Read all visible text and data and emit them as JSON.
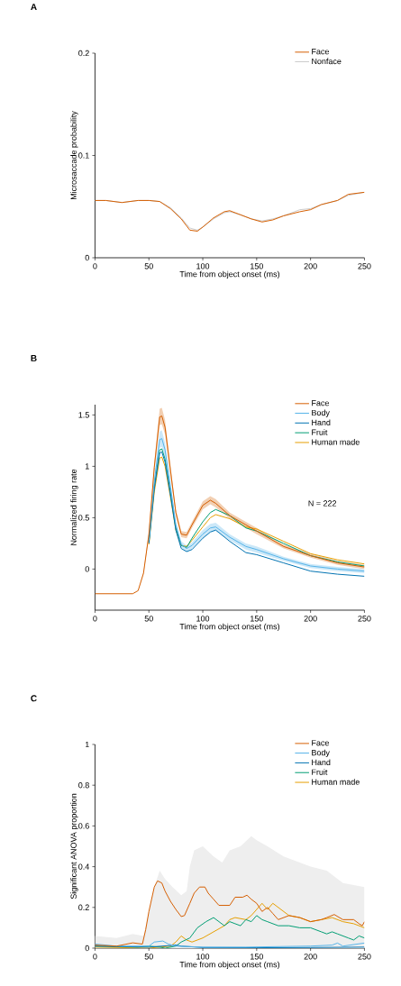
{
  "chart_data": [
    {
      "type": "line",
      "title": "A",
      "xlabel": "Time from object onset (ms)",
      "ylabel": "Microsaccade probability",
      "xlim": [
        0,
        250
      ],
      "ylim": [
        0,
        0.2
      ],
      "xticks": [
        0,
        50,
        100,
        150,
        200,
        250
      ],
      "yticks": [
        0,
        0.1,
        0.2
      ],
      "legend": "top right",
      "x": [
        0,
        10,
        25,
        40,
        50,
        60,
        70,
        80,
        88,
        95,
        100,
        110,
        120,
        125,
        135,
        145,
        155,
        165,
        175,
        190,
        200,
        210,
        225,
        235,
        250
      ],
      "series": [
        {
          "name": "Face",
          "color": "#d55e00",
          "values": [
            0.056,
            0.056,
            0.054,
            0.056,
            0.056,
            0.055,
            0.048,
            0.038,
            0.027,
            0.026,
            0.03,
            0.039,
            0.045,
            0.046,
            0.042,
            0.038,
            0.035,
            0.037,
            0.041,
            0.045,
            0.047,
            0.052,
            0.056,
            0.062,
            0.064
          ]
        },
        {
          "name": "Nonface",
          "color": "#cccccc",
          "values": [
            0.056,
            0.056,
            0.054,
            0.056,
            0.056,
            0.055,
            0.049,
            0.039,
            0.029,
            0.027,
            0.03,
            0.038,
            0.044,
            0.045,
            0.042,
            0.038,
            0.036,
            0.038,
            0.041,
            0.047,
            0.048,
            0.052,
            0.056,
            0.061,
            0.064
          ]
        }
      ]
    },
    {
      "type": "line",
      "title": "B",
      "xlabel": "Time from object onset (ms)",
      "ylabel": "Normalized firing rate",
      "xlim": [
        0,
        250
      ],
      "ylim": [
        -0.4,
        1.6
      ],
      "xticks": [
        0,
        50,
        100,
        150,
        200,
        250
      ],
      "yticks": [
        0,
        0.5,
        1,
        1.5
      ],
      "legend": "top right",
      "annotations": [
        "N = 222"
      ],
      "x": [
        0,
        35,
        40,
        45,
        50,
        55,
        60,
        62,
        65,
        70,
        75,
        80,
        85,
        90,
        100,
        107,
        112,
        125,
        140,
        150,
        175,
        200,
        225,
        250
      ],
      "series": [
        {
          "name": "Face",
          "color": "#d55e00",
          "values": [
            -0.24,
            -0.24,
            -0.21,
            -0.04,
            0.34,
            0.99,
            1.48,
            1.49,
            1.38,
            0.96,
            0.55,
            0.34,
            0.33,
            0.43,
            0.62,
            0.67,
            0.64,
            0.52,
            0.43,
            0.37,
            0.22,
            0.13,
            0.06,
            0.02
          ],
          "lower": [
            -0.24,
            -0.24,
            -0.21,
            -0.05,
            0.31,
            0.94,
            1.4,
            1.41,
            1.31,
            0.91,
            0.52,
            0.31,
            0.3,
            0.4,
            0.58,
            0.63,
            0.6,
            0.49,
            0.4,
            0.34,
            0.2,
            0.11,
            0.04,
            0.0
          ],
          "upper": [
            -0.24,
            -0.24,
            -0.21,
            -0.03,
            0.37,
            1.04,
            1.56,
            1.57,
            1.45,
            1.01,
            0.58,
            0.37,
            0.36,
            0.46,
            0.66,
            0.71,
            0.68,
            0.55,
            0.46,
            0.4,
            0.24,
            0.15,
            0.08,
            0.04
          ]
        },
        {
          "name": "Body",
          "color": "#56b4e9",
          "values": [
            null,
            null,
            null,
            null,
            0.28,
            0.85,
            1.26,
            1.27,
            1.16,
            0.8,
            0.43,
            0.24,
            0.2,
            0.23,
            0.34,
            0.4,
            0.41,
            0.31,
            0.22,
            0.19,
            0.1,
            0.03,
            0.0,
            -0.02
          ],
          "lower": [
            null,
            null,
            null,
            null,
            0.25,
            0.8,
            1.18,
            1.19,
            1.09,
            0.75,
            0.4,
            0.21,
            0.17,
            0.2,
            0.3,
            0.36,
            0.37,
            0.28,
            0.19,
            0.16,
            0.08,
            0.01,
            -0.02,
            -0.04
          ],
          "upper": [
            null,
            null,
            null,
            null,
            0.31,
            0.9,
            1.34,
            1.35,
            1.23,
            0.85,
            0.46,
            0.27,
            0.23,
            0.26,
            0.38,
            0.44,
            0.45,
            0.34,
            0.25,
            0.22,
            0.12,
            0.05,
            0.02,
            0.0
          ]
        },
        {
          "name": "Hand",
          "color": "#0072b2",
          "values": [
            null,
            null,
            null,
            null,
            0.25,
            0.78,
            1.13,
            1.14,
            1.04,
            0.72,
            0.38,
            0.2,
            0.17,
            0.19,
            0.3,
            0.36,
            0.38,
            0.27,
            0.16,
            0.14,
            0.06,
            -0.02,
            -0.05,
            -0.07
          ]
        },
        {
          "name": "Fruit",
          "color": "#009e73",
          "values": [
            null,
            null,
            null,
            null,
            0.26,
            0.8,
            1.16,
            1.17,
            1.07,
            0.74,
            0.4,
            0.23,
            0.21,
            0.3,
            0.46,
            0.55,
            0.58,
            0.52,
            0.4,
            0.37,
            0.25,
            0.13,
            0.07,
            0.03
          ]
        },
        {
          "name": "Human made",
          "color": "#e69f00",
          "values": [
            null,
            null,
            null,
            null,
            0.24,
            0.75,
            1.08,
            1.09,
            1.0,
            0.7,
            0.38,
            0.23,
            0.22,
            0.28,
            0.41,
            0.5,
            0.53,
            0.49,
            0.41,
            0.39,
            0.27,
            0.15,
            0.09,
            0.05
          ]
        }
      ]
    },
    {
      "type": "line",
      "title": "C",
      "xlabel": "Time from object onset (ms)",
      "ylabel": "Significant ANOVA proportion",
      "xlim": [
        0,
        250
      ],
      "ylim": [
        0,
        1
      ],
      "xticks": [
        0,
        50,
        100,
        150,
        200,
        250
      ],
      "yticks": [
        0,
        0.2,
        0.4,
        0.6,
        0.8,
        1
      ],
      "legend": "top right",
      "series": [
        {
          "type": "area",
          "color": "#eeeeee",
          "x": [
            0,
            20,
            35,
            45,
            50,
            55,
            60,
            65,
            72,
            80,
            85,
            88,
            92,
            100,
            110,
            118,
            125,
            135,
            145,
            150,
            160,
            175,
            190,
            200,
            215,
            230,
            250
          ],
          "values": [
            0.06,
            0.05,
            0.07,
            0.06,
            0.18,
            0.3,
            0.38,
            0.34,
            0.3,
            0.26,
            0.28,
            0.4,
            0.48,
            0.5,
            0.45,
            0.42,
            0.48,
            0.5,
            0.55,
            0.53,
            0.5,
            0.45,
            0.42,
            0.4,
            0.38,
            0.32,
            0.3
          ]
        },
        {
          "name": "Face",
          "color": "#d55e00",
          "x": [
            0,
            20,
            35,
            44,
            47,
            50,
            55,
            58,
            62,
            65,
            70,
            75,
            80,
            83,
            88,
            92,
            97,
            102,
            105,
            110,
            115,
            120,
            125,
            130,
            137,
            141,
            145,
            150,
            155,
            160,
            165,
            170,
            180,
            190,
            200,
            210,
            215,
            222,
            230,
            240,
            245,
            248,
            250
          ],
          "values": [
            0.015,
            0.01,
            0.026,
            0.02,
            0.09,
            0.18,
            0.3,
            0.33,
            0.32,
            0.28,
            0.23,
            0.19,
            0.155,
            0.16,
            0.22,
            0.27,
            0.3,
            0.3,
            0.27,
            0.24,
            0.21,
            0.21,
            0.21,
            0.25,
            0.25,
            0.26,
            0.24,
            0.22,
            0.18,
            0.2,
            0.17,
            0.14,
            0.16,
            0.15,
            0.13,
            0.14,
            0.15,
            0.165,
            0.14,
            0.14,
            0.12,
            0.11,
            0.13
          ]
        },
        {
          "name": "Body",
          "color": "#56b4e9",
          "x": [
            0,
            20,
            50,
            55,
            63,
            68,
            75,
            100,
            140,
            200,
            220,
            225,
            230,
            250
          ],
          "values": [
            0.02,
            0.01,
            0.01,
            0.03,
            0.035,
            0.02,
            0.01,
            0.005,
            0.005,
            0.01,
            0.015,
            0.025,
            0.01,
            0.025
          ]
        },
        {
          "name": "Hand",
          "color": "#0072b2",
          "x": [
            0,
            50,
            75,
            80,
            100,
            150,
            200,
            250
          ],
          "values": [
            0.01,
            0.005,
            0.015,
            0.01,
            0.003,
            0.002,
            0.003,
            0.005
          ]
        },
        {
          "name": "Fruit",
          "color": "#009e73",
          "x": [
            0,
            40,
            50,
            60,
            65,
            75,
            80,
            88,
            95,
            103,
            110,
            115,
            120,
            125,
            130,
            135,
            140,
            145,
            150,
            155,
            160,
            170,
            180,
            190,
            200,
            210,
            215,
            220,
            225,
            235,
            240,
            245,
            250
          ],
          "values": [
            0.01,
            0.005,
            0.01,
            0.005,
            0,
            0.01,
            0.03,
            0.05,
            0.1,
            0.13,
            0.15,
            0.13,
            0.11,
            0.13,
            0.12,
            0.11,
            0.14,
            0.13,
            0.16,
            0.14,
            0.13,
            0.11,
            0.11,
            0.1,
            0.1,
            0.08,
            0.07,
            0.08,
            0.07,
            0.05,
            0.04,
            0.06,
            0.05
          ]
        },
        {
          "name": "Human made",
          "color": "#e69f00",
          "x": [
            0,
            50,
            70,
            75,
            80,
            85,
            90,
            95,
            100,
            110,
            120,
            125,
            130,
            140,
            145,
            150,
            155,
            160,
            165,
            170,
            175,
            180,
            190,
            200,
            210,
            220,
            230,
            240,
            250
          ],
          "values": [
            0.005,
            0.0,
            0.01,
            0.03,
            0.06,
            0.04,
            0.03,
            0.04,
            0.05,
            0.08,
            0.11,
            0.14,
            0.15,
            0.14,
            0.16,
            0.19,
            0.22,
            0.19,
            0.22,
            0.2,
            0.18,
            0.16,
            0.15,
            0.13,
            0.14,
            0.15,
            0.13,
            0.12,
            0.1
          ]
        }
      ]
    }
  ]
}
